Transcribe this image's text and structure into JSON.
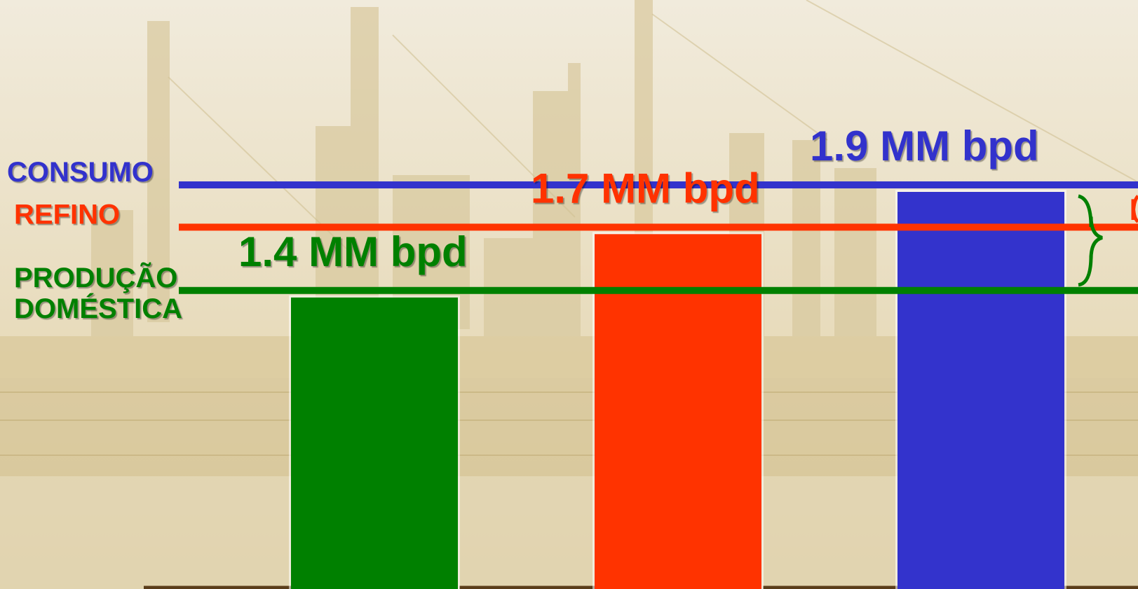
{
  "chart_data": {
    "type": "bar",
    "unit": "MM bpd",
    "series": [
      {
        "name": "PRODUÇÃO DOMÉSTICA",
        "label_lines": [
          "PRODUÇÃO",
          "DOMÉSTICA"
        ],
        "value": 1.4,
        "value_label": "1.4 MM bpd",
        "color": "#008000"
      },
      {
        "name": "REFINO",
        "label_lines": [
          "REFINO"
        ],
        "value": 1.7,
        "value_label": "1.7 MM bpd",
        "color": "#ff3300"
      },
      {
        "name": "CONSUMO",
        "label_lines": [
          "CONSUMO"
        ],
        "value": 1.9,
        "value_label": "1.9 MM bpd",
        "color": "#3333cc"
      }
    ],
    "grid": false,
    "legend": "none"
  },
  "colors": {
    "background": "#eee6d2",
    "background_photo": "#c9b98a",
    "baseline": "#5a3d1a"
  }
}
